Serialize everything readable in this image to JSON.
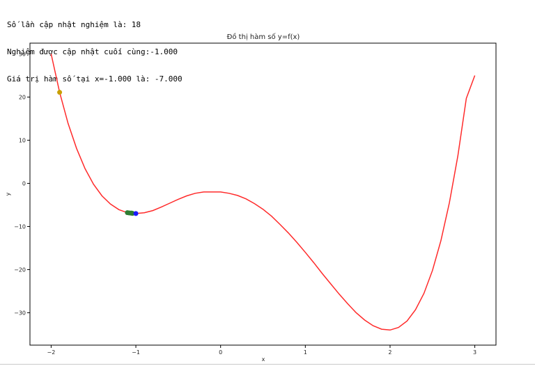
{
  "output_lines": [
    "Số lần cập nhật nghiệm là: 18",
    "Nghiệm được cập nhật cuối cùng:-1.000",
    "Giá trị hàm số tại x=-1.000 là: -7.000"
  ],
  "chart_data": {
    "type": "line",
    "title": "Đồ thị hàm số y=f(x)",
    "xlabel": "x",
    "ylabel": "y",
    "xlim": [
      -2.25,
      3.25
    ],
    "ylim": [
      -37.5,
      32.5
    ],
    "x_ticks": [
      -2,
      -1,
      0,
      1,
      2,
      3
    ],
    "y_ticks": [
      30,
      20,
      10,
      0,
      -10,
      -20,
      -30
    ],
    "grid": false,
    "series": [
      {
        "color": "#ff2a2a",
        "x_range": [
          -2,
          3
        ],
        "points": [
          [
            -2.0,
            30.0
          ],
          [
            -1.9,
            21.1
          ],
          [
            -1.8,
            13.9
          ],
          [
            -1.7,
            8.1
          ],
          [
            -1.6,
            3.4
          ],
          [
            -1.5,
            -0.2
          ],
          [
            -1.4,
            -2.9
          ],
          [
            -1.3,
            -4.8
          ],
          [
            -1.2,
            -6.1
          ],
          [
            -1.1,
            -6.8
          ],
          [
            -1.0,
            -7.0
          ],
          [
            -0.9,
            -6.8
          ],
          [
            -0.8,
            -6.3
          ],
          [
            -0.7,
            -5.5
          ],
          [
            -0.6,
            -4.6
          ],
          [
            -0.5,
            -3.7
          ],
          [
            -0.4,
            -2.9
          ],
          [
            -0.3,
            -2.3
          ],
          [
            -0.2,
            -2.0
          ],
          [
            -0.1,
            -2.0
          ],
          [
            0.0,
            -2.0
          ],
          [
            0.1,
            -2.3
          ],
          [
            0.2,
            -2.8
          ],
          [
            0.3,
            -3.6
          ],
          [
            0.4,
            -4.7
          ],
          [
            0.5,
            -6.0
          ],
          [
            0.6,
            -7.6
          ],
          [
            0.7,
            -9.5
          ],
          [
            0.8,
            -11.5
          ],
          [
            0.9,
            -13.7
          ],
          [
            1.0,
            -16.0
          ],
          [
            1.1,
            -18.4
          ],
          [
            1.2,
            -20.9
          ],
          [
            1.3,
            -23.3
          ],
          [
            1.4,
            -25.7
          ],
          [
            1.5,
            -27.9
          ],
          [
            1.6,
            -30.0
          ],
          [
            1.7,
            -31.7
          ],
          [
            1.8,
            -33.0
          ],
          [
            1.9,
            -33.8
          ],
          [
            2.0,
            -34.0
          ],
          [
            2.1,
            -33.4
          ],
          [
            2.2,
            -31.9
          ],
          [
            2.3,
            -29.3
          ],
          [
            2.4,
            -25.5
          ],
          [
            2.5,
            -20.2
          ],
          [
            2.6,
            -13.3
          ],
          [
            2.7,
            -4.5
          ],
          [
            2.8,
            6.4
          ],
          [
            2.9,
            19.7
          ],
          [
            3.0,
            25.0
          ]
        ]
      }
    ],
    "markers": [
      {
        "color": "#c8a000",
        "points": [
          [
            -1.9,
            21.1
          ]
        ]
      },
      {
        "color": "#2e7d32",
        "points": [
          [
            -1.1,
            -6.8
          ],
          [
            -1.08,
            -6.85
          ],
          [
            -1.06,
            -6.9
          ],
          [
            -1.05,
            -6.9
          ],
          [
            -1.04,
            -6.95
          ]
        ]
      },
      {
        "color": "#1a1aff",
        "points": [
          [
            -1.0,
            -7.0
          ]
        ]
      }
    ]
  }
}
